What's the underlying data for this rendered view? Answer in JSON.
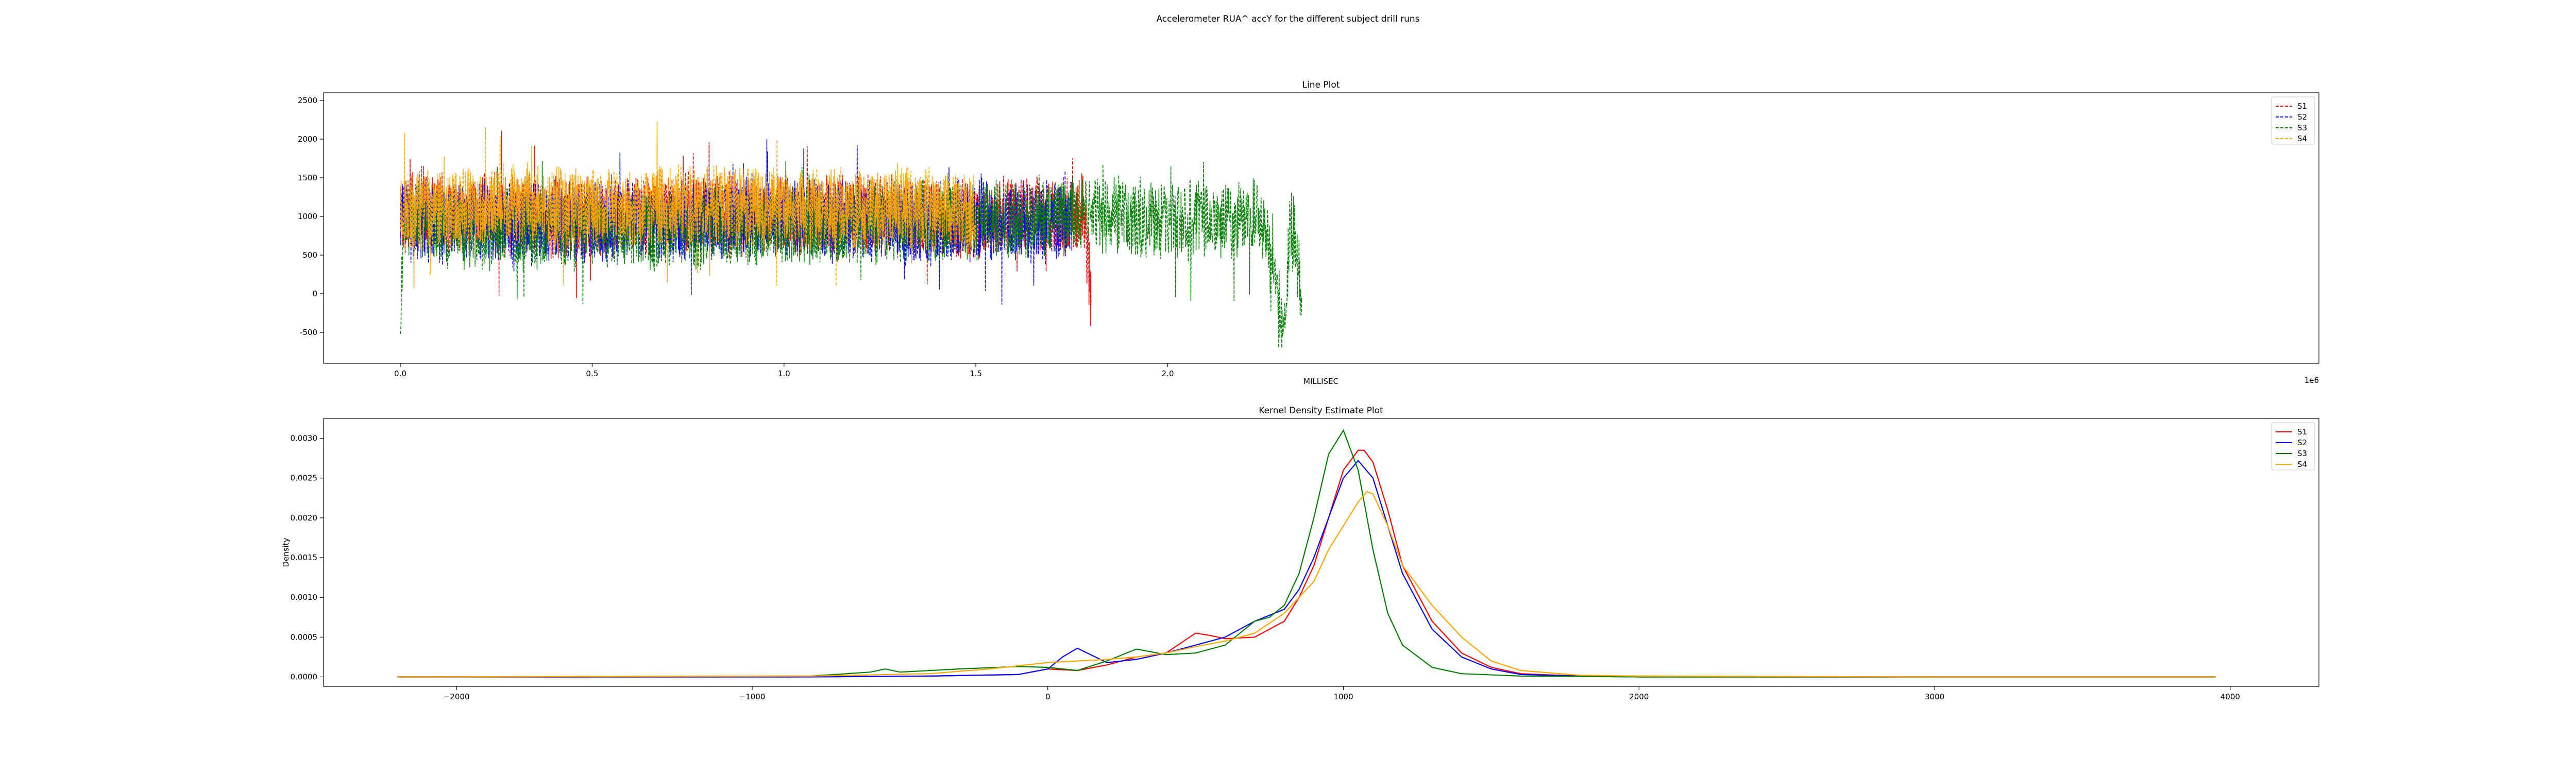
{
  "figure": {
    "suptitle": "Accelerometer RUA^ accY for the different subject drill runs"
  },
  "chart_data": [
    {
      "type": "line",
      "title": "Line Plot",
      "xlabel": "MILLISEC",
      "ylabel": "",
      "x_offset_text": "1e6",
      "xlim": [
        -0.2,
        5.0
      ],
      "ylim": [
        -900,
        2600
      ],
      "x_ticks": [
        0.0,
        0.5,
        1.0,
        1.5,
        2.0
      ],
      "x_tick_labels": [
        "0.0",
        "0.5",
        "1.0",
        "1.5",
        "2.0"
      ],
      "y_ticks": [
        -500,
        0,
        500,
        1000,
        1500,
        2000,
        2500
      ],
      "y_tick_labels": [
        "-500",
        "0",
        "500",
        "1000",
        "1500",
        "2000",
        "2500"
      ],
      "x_unit": "MILLISEC ×1e6",
      "line_style": "dashed",
      "legend_position": "top-right",
      "series": [
        {
          "name": "S1",
          "color": "#ff0000",
          "x": [
            0.0,
            0.05,
            0.15,
            0.3,
            0.45,
            0.6,
            0.75,
            0.9,
            1.05,
            1.2,
            1.35,
            1.5,
            1.6,
            1.7,
            1.76,
            1.78,
            1.8
          ],
          "y": [
            1000,
            1100,
            1000,
            1050,
            950,
            1000,
            1050,
            1000,
            1000,
            1050,
            1000,
            950,
            1000,
            950,
            1000,
            1100,
            0
          ]
        },
        {
          "name": "S2",
          "color": "#0000ff",
          "x": [
            0.0,
            0.05,
            0.15,
            0.3,
            0.45,
            0.6,
            0.75,
            0.9,
            1.05,
            1.2,
            1.35,
            1.5,
            1.6,
            1.7,
            1.75
          ],
          "y": [
            1000,
            950,
            900,
            900,
            950,
            900,
            950,
            1000,
            950,
            950,
            900,
            950,
            900,
            900,
            1000
          ]
        },
        {
          "name": "S3",
          "color": "#008000",
          "x": [
            0.0,
            0.01,
            0.05,
            0.15,
            0.3,
            0.5,
            0.8,
            1.2,
            1.5,
            1.7,
            1.9,
            2.1,
            2.25,
            2.3,
            2.32,
            2.35
          ],
          "y": [
            -600,
            1000,
            1000,
            800,
            850,
            850,
            850,
            900,
            950,
            1000,
            1000,
            950,
            950,
            -550,
            1000,
            0
          ]
        },
        {
          "name": "S4",
          "color": "#ffa500",
          "x": [
            0.0,
            0.05,
            0.15,
            0.3,
            0.45,
            0.6,
            0.75,
            0.9,
            1.05,
            1.2,
            1.35,
            1.45,
            1.5
          ],
          "y": [
            1000,
            1100,
            1100,
            1150,
            1100,
            1100,
            1150,
            1150,
            1100,
            1100,
            1100,
            1050,
            1000
          ]
        }
      ]
    },
    {
      "type": "line",
      "title": "Kernel Density Estimate Plot",
      "xlabel": "",
      "ylabel": "Density",
      "xlim": [
        -2450,
        4300
      ],
      "ylim": [
        -0.00012,
        0.00325
      ],
      "x_ticks": [
        -2000,
        -1000,
        0,
        1000,
        2000,
        3000,
        4000
      ],
      "x_tick_labels": [
        "−2000",
        "−1000",
        "0",
        "1000",
        "2000",
        "3000",
        "4000"
      ],
      "y_ticks": [
        0.0,
        0.0005,
        0.001,
        0.0015,
        0.002,
        0.0025,
        0.003
      ],
      "y_tick_labels": [
        "0.0000",
        "0.0005",
        "0.0010",
        "0.0015",
        "0.0020",
        "0.0025",
        "0.0030"
      ],
      "legend_position": "top-right",
      "series": [
        {
          "name": "S1",
          "color": "#ff0000",
          "x": [
            -2200,
            -800,
            -400,
            -100,
            0,
            100,
            200,
            300,
            400,
            500,
            550,
            600,
            700,
            800,
            850,
            900,
            950,
            1000,
            1050,
            1070,
            1100,
            1150,
            1200,
            1300,
            1400,
            1500,
            1600,
            1800,
            2000,
            3000,
            3950
          ],
          "y": [
            0.0,
            0.0,
            1e-05,
            3e-05,
            0.0001,
            8e-05,
            0.00015,
            0.00025,
            0.0003,
            0.00055,
            0.00052,
            0.00048,
            0.0005,
            0.0007,
            0.001,
            0.0014,
            0.002,
            0.0026,
            0.00285,
            0.00285,
            0.0027,
            0.0021,
            0.0014,
            0.0007,
            0.0003,
            0.00012,
            4e-05,
            1e-05,
            0.0,
            0.0,
            0.0
          ]
        },
        {
          "name": "S2",
          "color": "#0000ff",
          "x": [
            -2200,
            -800,
            -400,
            -100,
            0,
            50,
            100,
            200,
            300,
            400,
            500,
            600,
            700,
            800,
            850,
            900,
            950,
            1000,
            1050,
            1100,
            1150,
            1200,
            1300,
            1400,
            1500,
            1600,
            1800,
            2000,
            3000,
            3950
          ],
          "y": [
            0.0,
            0.0,
            1e-05,
            3e-05,
            0.0001,
            0.00025,
            0.00036,
            0.00018,
            0.00022,
            0.0003,
            0.0004,
            0.0005,
            0.0007,
            0.00085,
            0.0011,
            0.0015,
            0.002,
            0.0025,
            0.00272,
            0.0025,
            0.0019,
            0.0013,
            0.0006,
            0.00025,
            0.0001,
            3e-05,
            1e-05,
            0.0,
            0.0,
            0.0
          ]
        },
        {
          "name": "S3",
          "color": "#008000",
          "x": [
            -2200,
            -800,
            -600,
            -550,
            -500,
            -300,
            -100,
            0,
            100,
            200,
            300,
            400,
            500,
            600,
            700,
            750,
            800,
            850,
            900,
            950,
            1000,
            1050,
            1100,
            1150,
            1200,
            1300,
            1400,
            1600,
            2000,
            3000,
            3950
          ],
          "y": [
            0.0,
            1e-05,
            6e-05,
            0.0001,
            6e-05,
            0.0001,
            0.00013,
            0.00012,
            8e-05,
            0.0002,
            0.00035,
            0.00028,
            0.0003,
            0.0004,
            0.0007,
            0.00075,
            0.0009,
            0.0013,
            0.002,
            0.0028,
            0.0031,
            0.0026,
            0.0016,
            0.0008,
            0.0004,
            0.00012,
            4e-05,
            1e-05,
            0.0,
            0.0,
            0.0
          ]
        },
        {
          "name": "S4",
          "color": "#ffa500",
          "x": [
            -2200,
            -800,
            -400,
            -200,
            0,
            200,
            300,
            400,
            500,
            600,
            700,
            800,
            900,
            950,
            1000,
            1050,
            1080,
            1100,
            1150,
            1200,
            1300,
            1400,
            1500,
            1600,
            1800,
            2000,
            3000,
            3950
          ],
          "y": [
            0.0,
            1e-05,
            4e-05,
            0.0001,
            0.00018,
            0.00022,
            0.00025,
            0.0003,
            0.00038,
            0.00045,
            0.00055,
            0.0008,
            0.0012,
            0.0016,
            0.0019,
            0.0022,
            0.00233,
            0.0023,
            0.0019,
            0.0014,
            0.0009,
            0.0005,
            0.0002,
            8e-05,
            2e-05,
            1e-05,
            0.0,
            0.0
          ]
        }
      ]
    }
  ]
}
